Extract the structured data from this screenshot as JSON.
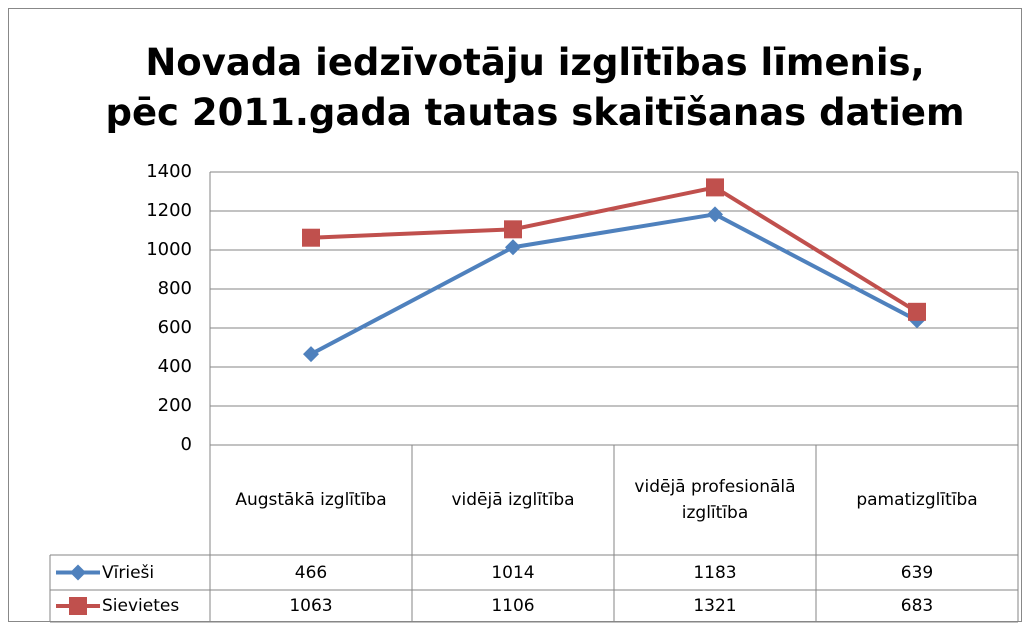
{
  "chart_data": {
    "type": "line",
    "title": "Novada iedzīvotāju izglītības līmenis, pēc 2011.gada tautas skaitīšanas datiem",
    "categories": [
      "Augstākā izglītība",
      "vidējā izglītība",
      "vidējā profesionālā izglītība",
      "pamatizglītība"
    ],
    "series": [
      {
        "name": "Vīrieši",
        "color": "#4f81bd",
        "marker": "diamond",
        "values": [
          466,
          1014,
          1183,
          639
        ]
      },
      {
        "name": "Sievietes",
        "color": "#c0504d",
        "marker": "square",
        "values": [
          1063,
          1106,
          1321,
          683
        ]
      }
    ],
    "ylim": [
      0,
      1400
    ],
    "yticks": [
      0,
      200,
      400,
      600,
      800,
      1000,
      1200,
      1400
    ],
    "grid": true,
    "data_table": true
  }
}
